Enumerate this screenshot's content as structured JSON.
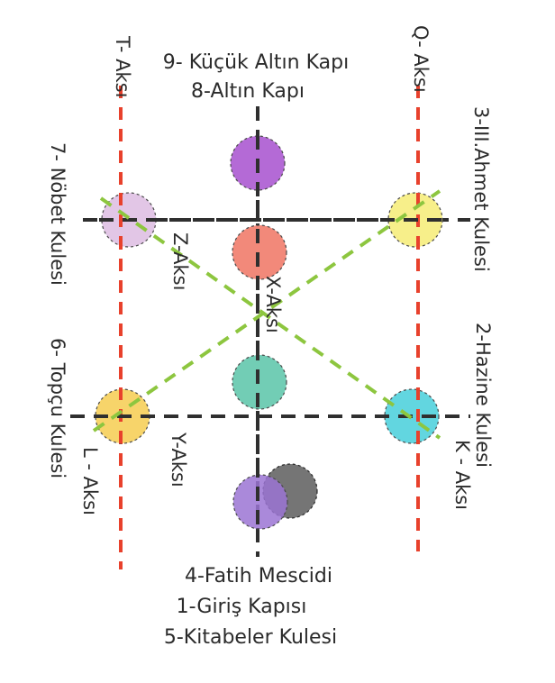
{
  "labels": {
    "top_line1": "9- Küçük Altın Kapı",
    "top_line2": "8-Altın Kapı",
    "bottom_line1": "4-Fatih Mescidi",
    "bottom_line2": "1-Giriş Kapısı",
    "bottom_line3": "5-Kitabeler Kulesi",
    "t_axis": "T- Aksı",
    "q_axis": "Q- Aksı",
    "nobet": "7- Nöbet Kulesi",
    "ahmet": "3-III.Ahmet Kulesi",
    "topcu": "6- Topçu Kulesi",
    "hazine": "2-Hazine Kulesi",
    "z_axis": "Z-Aksı",
    "x_axis": "X-Aksı",
    "y_axis": "Y-Aksı",
    "l_axis": "L - Aksı",
    "k_axis": "K - Aksı"
  },
  "colors": {
    "red_axis": "#e8412c",
    "black_axis": "#2f2f2f",
    "green_axis": "#8dc63f",
    "purple_top": "#b46ad6",
    "salmon": "#f2897a",
    "teal": "#72cdb5",
    "violet_bottom": "#9b74d4",
    "grey_bottom": "#666666",
    "lilac": "#e2c6e6",
    "yellow": "#f7ef8a",
    "orange_yellow": "#f7d46a",
    "cyan": "#62d6e0"
  }
}
